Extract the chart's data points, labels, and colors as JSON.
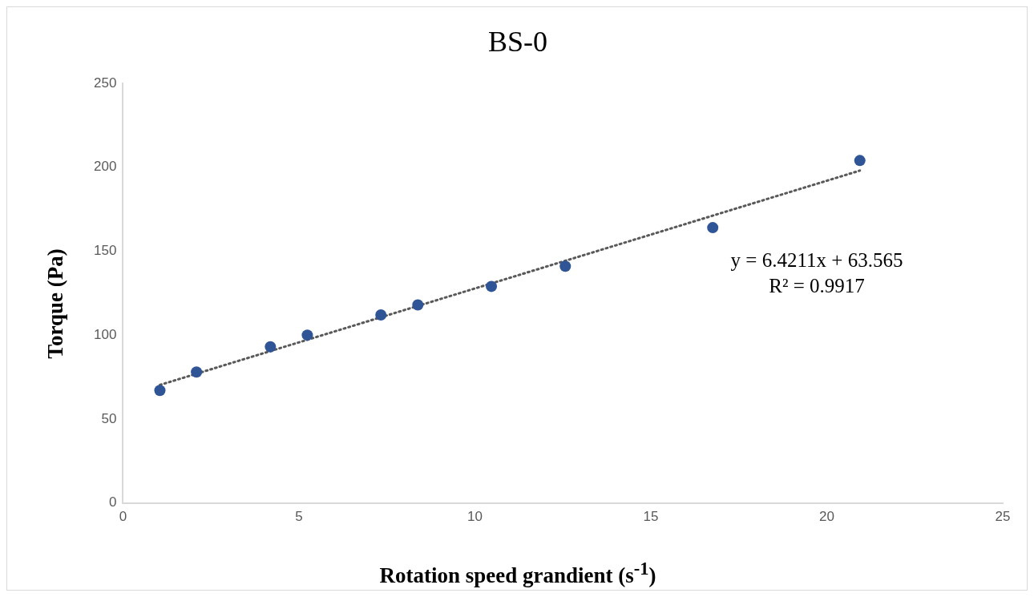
{
  "chart_data": {
    "type": "scatter",
    "title": "BS-0",
    "xlabel": "Rotation speed grandient (s$^{-1}$)",
    "ylabel": "Torque (Pa)",
    "series": [
      {
        "type": "scatter",
        "color": "#2f5597",
        "marker": "circle",
        "x": [
          1.05,
          2.09,
          4.19,
          5.24,
          7.33,
          8.38,
          10.47,
          12.57,
          16.76,
          20.94
        ],
        "values": [
          67,
          78,
          93,
          100,
          112,
          118,
          129,
          141,
          164,
          204
        ]
      },
      {
        "type": "line",
        "color": "#595959",
        "marker": "none",
        "line_style": "dotted",
        "x": [
          1.05,
          20.94
        ],
        "values": [
          70.3,
          198.0
        ]
      }
    ],
    "xlim": [
      0,
      25
    ],
    "xticks": [
      0,
      5,
      10,
      15,
      20,
      25
    ],
    "ylim": [
      0,
      250
    ],
    "yticks": [
      0,
      50,
      100,
      150,
      200,
      250
    ],
    "grid": false,
    "legend": false,
    "annotations": [
      "y = 6.4211x + 63.565",
      "R² = 0.9917"
    ]
  }
}
